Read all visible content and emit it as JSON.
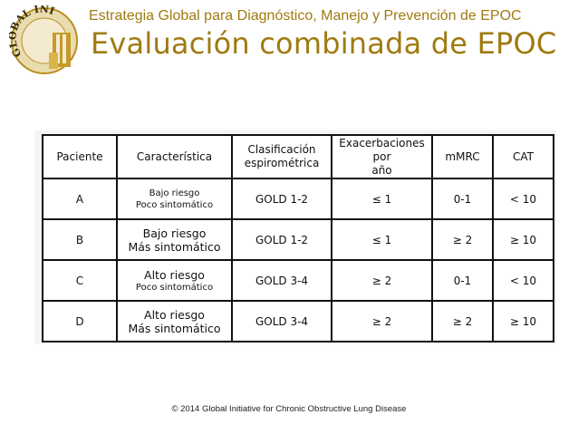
{
  "header": {
    "subtitle": "Estrategia Global para Diagnóstico, Manejo y Prevención de EPOC",
    "title": "Evaluación combinada de EPOC",
    "logo_text": "GLOBAL INI",
    "logo_accent_color": "#c59a2a"
  },
  "table": {
    "headers": [
      "Paciente",
      "Característica",
      "Clasificación espirométrica",
      "Exacerbaciones por año",
      "mMRC",
      "CAT"
    ],
    "header_lines": {
      "clasificacion": [
        "Clasificación",
        "espirométrica"
      ],
      "exacerbaciones": [
        "Exacerbaciones por",
        "año"
      ]
    },
    "rows": [
      {
        "paciente": "A",
        "caracteristica_1": "Bajo riesgo",
        "caracteristica_2": "Poco sintomático",
        "gold": "GOLD 1-2",
        "exacerbaciones": "≤ 1",
        "mmrc": "0-1",
        "cat": "< 10"
      },
      {
        "paciente": "B",
        "caracteristica_1": "Bajo riesgo",
        "caracteristica_2": "Más sintomático",
        "gold": "GOLD 1-2",
        "exacerbaciones": "≤ 1",
        "mmrc": "≥ 2",
        "cat": "≥ 10"
      },
      {
        "paciente": "C",
        "caracteristica_1": "Alto riesgo",
        "caracteristica_2": "Poco sintomático",
        "gold": "GOLD 3-4",
        "exacerbaciones": "≥ 2",
        "mmrc": "0-1",
        "cat": "< 10"
      },
      {
        "paciente": "D",
        "caracteristica_1": "Alto riesgo",
        "caracteristica_2": "Más sintomático",
        "gold": "GOLD 3-4",
        "exacerbaciones": "≥ 2",
        "mmrc": "≥ 2",
        "cat": "≥ 10"
      }
    ]
  },
  "footer": {
    "copyright": "© 2014 Global Initiative for Chronic Obstructive Lung Disease"
  }
}
